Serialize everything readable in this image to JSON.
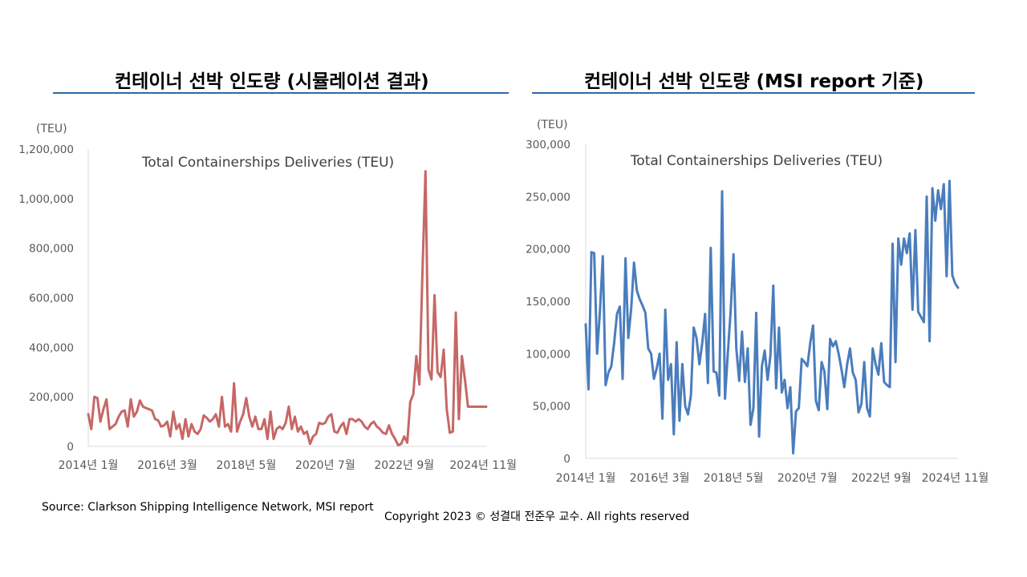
{
  "source_note": "Source: Clarkson Shipping Intelligence Network, MSI report",
  "copyright": "Copyright 2023 © 성결대 전준우 교수. All rights reserved",
  "accent_colors": {
    "rule": "#2e6aa8",
    "left_series": "#c66866",
    "right_series": "#4a7dbd"
  },
  "chart_data": [
    {
      "panel_title": "컨테이너 선박 인도량 (시뮬레이션 결과)",
      "type": "line",
      "title": "Total Containerships Deliveries (TEU)",
      "unit_label": "(TEU)",
      "yticks": [
        0,
        200000,
        400000,
        600000,
        800000,
        1000000,
        1200000
      ],
      "ytick_labels": [
        "0",
        "200,000",
        "400,000",
        "600,000",
        "800,000",
        "1,000,000",
        "1,200,000"
      ],
      "ylim": [
        0,
        1200000
      ],
      "xlim": [
        0,
        131
      ],
      "xtick_positions": [
        0,
        26,
        52,
        78,
        104,
        130
      ],
      "xtick_labels": [
        "2014년 1월",
        "2016년 3월",
        "2018년 5월",
        "2020년 7월",
        "2022년 9월",
        "2024년 11월"
      ],
      "series": [
        {
          "name": "Total Containerships Deliveries (TEU)",
          "color": "#c66866",
          "values": [
            130000,
            70000,
            200000,
            195000,
            100000,
            150000,
            190000,
            70000,
            80000,
            90000,
            120000,
            140000,
            145000,
            80000,
            190000,
            120000,
            140000,
            185000,
            160000,
            155000,
            150000,
            145000,
            110000,
            105000,
            80000,
            85000,
            100000,
            40000,
            140000,
            70000,
            90000,
            30000,
            110000,
            40000,
            90000,
            60000,
            50000,
            70000,
            125000,
            115000,
            100000,
            110000,
            130000,
            80000,
            200000,
            80000,
            90000,
            60000,
            255000,
            60000,
            100000,
            130000,
            195000,
            120000,
            80000,
            120000,
            70000,
            70000,
            110000,
            30000,
            140000,
            30000,
            70000,
            80000,
            70000,
            95000,
            160000,
            70000,
            120000,
            60000,
            80000,
            50000,
            60000,
            10000,
            40000,
            50000,
            95000,
            90000,
            95000,
            120000,
            130000,
            60000,
            55000,
            80000,
            95000,
            50000,
            110000,
            110000,
            100000,
            110000,
            100000,
            80000,
            70000,
            90000,
            100000,
            80000,
            70000,
            55000,
            50000,
            85000,
            50000,
            30000,
            5000,
            10000,
            40000,
            15000,
            180000,
            210000,
            365000,
            250000,
            700000,
            1110000,
            310000,
            270000,
            610000,
            300000,
            280000,
            390000,
            150000,
            55000,
            60000,
            540000,
            110000,
            365000,
            270000,
            160000,
            160000,
            160000,
            160000,
            160000,
            160000,
            160000
          ]
        }
      ]
    },
    {
      "panel_title": "컨테이너 선박 인도량 (MSI report 기준)",
      "type": "line",
      "title": "Total Containerships Deliveries (TEU)",
      "unit_label": "(TEU)",
      "yticks": [
        0,
        50000,
        100000,
        150000,
        200000,
        250000,
        300000
      ],
      "ytick_labels": [
        "0",
        "50,000",
        "100,000",
        "150,000",
        "200,000",
        "250,000",
        "300,000"
      ],
      "ylim": [
        0,
        300000
      ],
      "xlim": [
        0,
        131
      ],
      "xtick_positions": [
        0,
        26,
        52,
        78,
        104,
        130
      ],
      "xtick_labels": [
        "2014년 1월",
        "2016년 3월",
        "2018년 5월",
        "2020년 7월",
        "2022년 9월",
        "2024년 11월"
      ],
      "series": [
        {
          "name": "Total Containerships Deliveries (TEU)",
          "color": "#4a7dbd",
          "values": [
            128000,
            66000,
            197000,
            196000,
            100000,
            140000,
            193000,
            70000,
            82000,
            88000,
            110000,
            138000,
            145000,
            76000,
            191000,
            115000,
            143000,
            187000,
            160000,
            152000,
            146000,
            139000,
            105000,
            100000,
            76000,
            86000,
            100000,
            38000,
            142000,
            75000,
            90000,
            23000,
            111000,
            36000,
            90000,
            50000,
            42000,
            60000,
            125000,
            115000,
            90000,
            110000,
            138000,
            72000,
            201000,
            83000,
            82000,
            60000,
            255000,
            57000,
            100000,
            140000,
            195000,
            105000,
            74000,
            121000,
            73000,
            105000,
            32000,
            48000,
            139000,
            21000,
            88000,
            103000,
            75000,
            98000,
            165000,
            67000,
            125000,
            63000,
            75000,
            48000,
            68000,
            5000,
            45000,
            48000,
            95000,
            92000,
            88000,
            110000,
            127000,
            55000,
            46000,
            92000,
            83000,
            47000,
            114000,
            107000,
            112000,
            100000,
            85000,
            68000,
            90000,
            105000,
            82000,
            75000,
            44000,
            52000,
            92000,
            48000,
            40000,
            105000,
            90000,
            80000,
            110000,
            73000,
            70000,
            68000,
            205000,
            92000,
            210000,
            185000,
            210000,
            196000,
            215000,
            142000,
            218000,
            140000,
            135000,
            130000,
            250000,
            112000,
            258000,
            227000,
            256000,
            238000,
            262000,
            174000,
            265000,
            175000,
            167000,
            163000
          ]
        }
      ]
    }
  ]
}
